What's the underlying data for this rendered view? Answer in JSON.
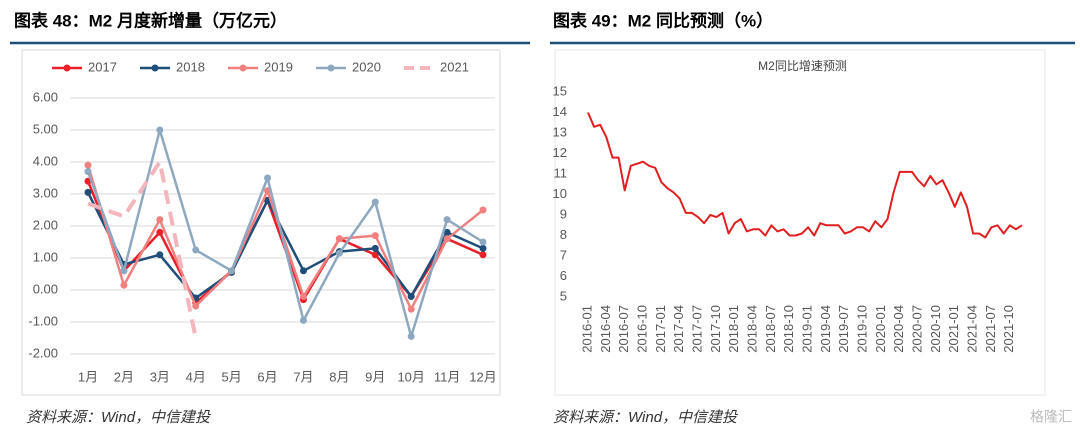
{
  "headers": [
    "图表 48：M2 月度新增量（万亿元）",
    "图表 49：M2 同比预测（%）"
  ],
  "sources": [
    "资料来源：Wind，中信建投",
    "资料来源：Wind，中信建投"
  ],
  "watermark": "格隆汇",
  "chart_data": [
    {
      "type": "line",
      "markers": true,
      "grid": true,
      "legend": "top",
      "categories": [
        "1月",
        "2月",
        "3月",
        "4月",
        "5月",
        "6月",
        "7月",
        "8月",
        "9月",
        "10月",
        "11月",
        "12月"
      ],
      "ylim": [
        -2,
        6
      ],
      "yticks": [
        {
          "value": -2,
          "label": "-2.00"
        },
        {
          "value": -1,
          "label": "-1.00"
        },
        {
          "value": 0,
          "label": "0.00"
        },
        {
          "value": 1,
          "label": "1.00"
        },
        {
          "value": 2,
          "label": "2.00"
        },
        {
          "value": 3,
          "label": "3.00"
        },
        {
          "value": 4,
          "label": "4.00"
        },
        {
          "value": 5,
          "label": "5.00"
        },
        {
          "value": 6,
          "label": "6.00"
        }
      ],
      "series": [
        {
          "name": "2017",
          "color": "#e8202a",
          "values": [
            3.4,
            0.6,
            1.8,
            -0.4,
            0.6,
            2.8,
            -0.3,
            1.6,
            1.1,
            -0.2,
            1.6,
            1.1
          ]
        },
        {
          "name": "2018",
          "color": "#1f4e79",
          "values": [
            3.05,
            0.8,
            1.1,
            -0.25,
            0.55,
            2.8,
            0.6,
            1.2,
            1.3,
            -0.2,
            1.8,
            1.3
          ]
        },
        {
          "name": "2019",
          "color": "#f08080",
          "values": [
            3.9,
            0.15,
            2.2,
            -0.5,
            0.6,
            3.1,
            -0.2,
            1.6,
            1.7,
            -0.6,
            1.6,
            2.5
          ]
        },
        {
          "name": "2020",
          "color": "#8ea9bf",
          "values": [
            3.7,
            0.6,
            5.0,
            1.25,
            0.6,
            3.5,
            -0.95,
            1.15,
            2.75,
            -1.45,
            2.2,
            1.5
          ]
        },
        {
          "name": "2021",
          "color": "#f4b6bd",
          "style": "dashed",
          "values": [
            2.7,
            2.3,
            4.0,
            -1.5,
            null,
            null,
            null,
            null,
            null,
            null,
            null,
            null
          ]
        }
      ]
    },
    {
      "type": "line",
      "title": "M2同比增速预测",
      "markers": false,
      "grid": false,
      "categories": [
        "2016-01",
        null,
        null,
        "2016-04",
        null,
        null,
        "2016-07",
        null,
        null,
        "2016-10",
        null,
        null,
        "2017-01",
        null,
        null,
        "2017-04",
        null,
        null,
        "2017-07",
        null,
        null,
        "2017-10",
        null,
        null,
        "2018-01",
        null,
        null,
        "2018-04",
        null,
        null,
        "2018-07",
        null,
        null,
        "2018-10",
        null,
        null,
        "2019-01",
        null,
        null,
        "2019-04",
        null,
        null,
        "2019-07",
        null,
        null,
        "2019-10",
        null,
        null,
        "2020-01",
        null,
        null,
        "2020-04",
        null,
        null,
        "2020-07",
        null,
        null,
        "2020-10",
        null,
        null,
        "2021-01",
        null,
        null,
        "2021-04",
        null,
        null,
        "2021-07",
        null,
        null,
        "2021-10",
        null,
        null
      ],
      "ylim": [
        5,
        15
      ],
      "yticks": [
        5,
        6,
        7,
        8,
        9,
        10,
        11,
        12,
        13,
        14,
        15
      ],
      "series": [
        {
          "name": "M2同比",
          "color": "#e02020",
          "values": [
            14.0,
            13.3,
            13.4,
            12.8,
            11.8,
            11.8,
            10.2,
            11.4,
            11.5,
            11.6,
            11.4,
            11.3,
            10.6,
            10.3,
            10.1,
            9.8,
            9.1,
            9.1,
            8.9,
            8.6,
            9.0,
            8.9,
            9.1,
            8.1,
            8.6,
            8.8,
            8.2,
            8.3,
            8.3,
            8.0,
            8.5,
            8.2,
            8.3,
            8.0,
            8.0,
            8.1,
            8.4,
            8.0,
            8.6,
            8.5,
            8.5,
            8.5,
            8.1,
            8.2,
            8.4,
            8.4,
            8.2,
            8.7,
            8.4,
            8.8,
            10.1,
            11.1,
            11.1,
            11.1,
            10.7,
            10.4,
            10.9,
            10.5,
            10.7,
            10.1,
            9.4,
            10.1,
            9.4,
            8.1,
            8.1,
            7.9,
            8.4,
            8.5,
            8.1,
            8.5,
            8.3,
            8.5
          ]
        }
      ]
    }
  ]
}
